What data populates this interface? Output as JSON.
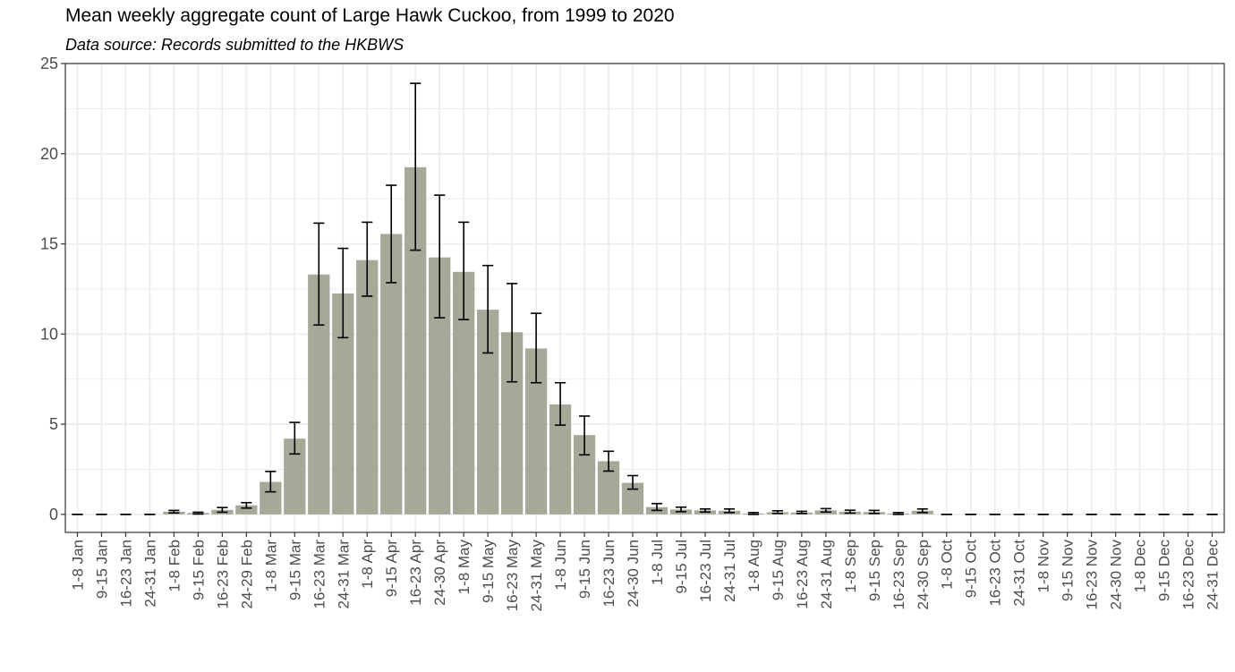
{
  "chart_data": {
    "type": "bar",
    "title": "Mean weekly aggregate count of Large Hawk Cuckoo, from 1999 to 2020",
    "subtitle": "Data source: Records submitted to the HKBWS",
    "xlabel": "",
    "ylabel": "",
    "ylim": [
      -1,
      25
    ],
    "yticks": [
      0,
      5,
      10,
      15,
      20,
      25
    ],
    "grid": true,
    "legend": "none",
    "colors": {
      "bar": "#a6a898",
      "error_bar": "#000000",
      "grid": "#ebebeb",
      "panel_border": "#333333"
    },
    "categories": [
      "1-8 Jan",
      "9-15 Jan",
      "16-23 Jan",
      "24-31 Jan",
      "1-8 Feb",
      "9-15 Feb",
      "16-23 Feb",
      "24-29 Feb",
      "1-8 Mar",
      "9-15 Mar",
      "16-23 Mar",
      "24-31 Mar",
      "1-8 Apr",
      "9-15 Apr",
      "16-23 Apr",
      "24-30 Apr",
      "1-8 May",
      "9-15 May",
      "16-23 May",
      "24-31 May",
      "1-8 Jun",
      "9-15 Jun",
      "16-23 Jun",
      "24-30 Jun",
      "1-8 Jul",
      "9-15 Jul",
      "16-23 Jul",
      "24-31 Jul",
      "1-8 Aug",
      "9-15 Aug",
      "16-23 Aug",
      "24-31 Aug",
      "1-8 Sep",
      "9-15 Sep",
      "16-23 Sep",
      "24-30 Sep",
      "1-8 Oct",
      "9-15 Oct",
      "16-23 Oct",
      "24-31 Oct",
      "1-8 Nov",
      "9-15 Nov",
      "16-23 Nov",
      "24-30 Nov",
      "1-8 Dec",
      "9-15 Dec",
      "16-23 Dec",
      "24-31 Dec"
    ],
    "values": [
      0,
      0,
      0,
      0,
      0.15,
      0.08,
      0.25,
      0.5,
      1.8,
      4.2,
      13.3,
      12.25,
      14.1,
      15.55,
      19.25,
      14.25,
      13.45,
      11.35,
      10.1,
      9.2,
      6.1,
      4.4,
      2.95,
      1.75,
      0.4,
      0.27,
      0.22,
      0.2,
      0.05,
      0.12,
      0.1,
      0.22,
      0.15,
      0.13,
      0.05,
      0.2,
      0,
      0,
      0,
      0,
      0,
      0,
      0,
      0,
      0,
      0,
      0,
      0
    ],
    "error_low": [
      0,
      0,
      0,
      0,
      0.08,
      0.02,
      0.12,
      0.35,
      1.25,
      3.35,
      10.5,
      9.8,
      12.1,
      12.85,
      14.65,
      10.9,
      10.8,
      8.95,
      7.35,
      7.3,
      4.95,
      3.3,
      2.4,
      1.4,
      0.22,
      0.15,
      0.13,
      0.1,
      0,
      0.05,
      0.05,
      0.13,
      0.07,
      0.05,
      0,
      0.1,
      0,
      0,
      0,
      0,
      0,
      0,
      0,
      0,
      0,
      0,
      0,
      0
    ],
    "error_high": [
      0,
      0,
      0,
      0,
      0.22,
      0.12,
      0.38,
      0.65,
      2.38,
      5.1,
      16.15,
      14.75,
      16.2,
      18.25,
      23.9,
      17.7,
      16.2,
      13.8,
      12.8,
      11.15,
      7.3,
      5.45,
      3.5,
      2.15,
      0.6,
      0.4,
      0.3,
      0.3,
      0.1,
      0.2,
      0.17,
      0.32,
      0.23,
      0.22,
      0.1,
      0.3,
      0,
      0,
      0,
      0,
      0,
      0,
      0,
      0,
      0,
      0,
      0,
      0
    ]
  }
}
